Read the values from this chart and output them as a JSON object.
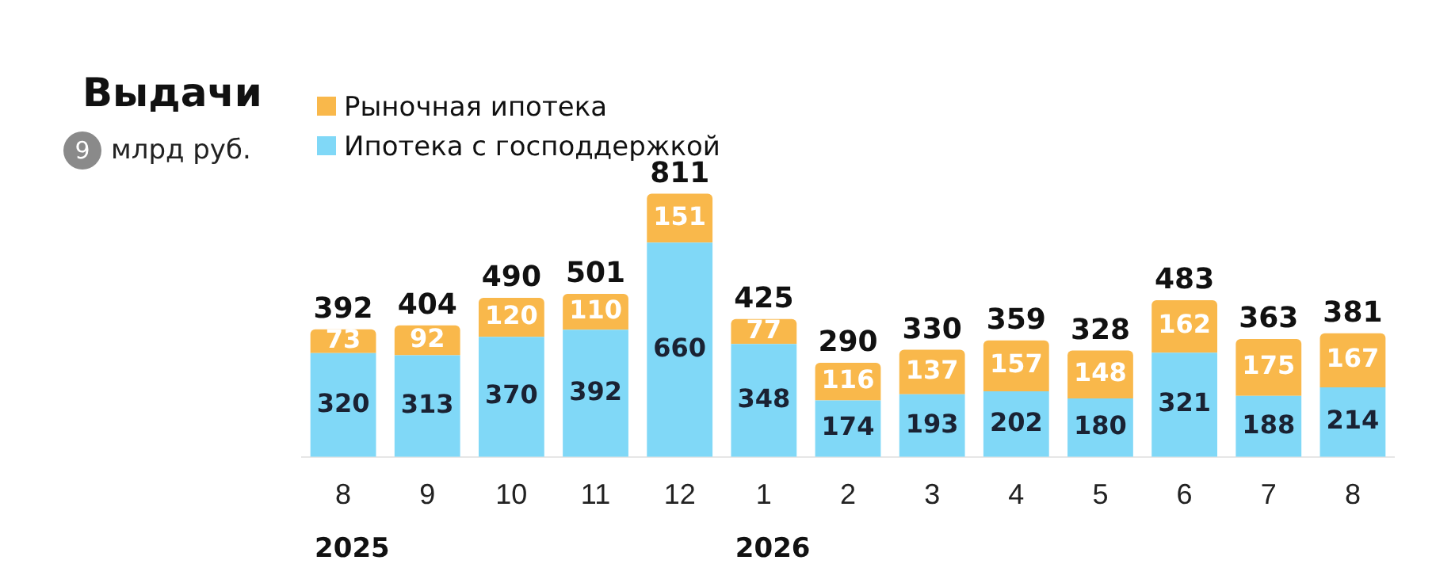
{
  "chart_data": {
    "type": "bar",
    "title": "Выдачи",
    "subtitle": "млрд руб.",
    "categories": [
      "8",
      "9",
      "10",
      "11",
      "12",
      "1",
      "2",
      "3",
      "4",
      "5",
      "6",
      "7",
      "8"
    ],
    "series": [
      {
        "name": "Ипотека с господдержкой",
        "color": "#80d8f7",
        "values": [
          320,
          313,
          370,
          392,
          660,
          348,
          174,
          193,
          202,
          180,
          321,
          188,
          214
        ]
      },
      {
        "name": "Рыночная ипотека",
        "color": "#f9b84b",
        "values": [
          73,
          92,
          120,
          110,
          151,
          77,
          116,
          137,
          157,
          148,
          162,
          175,
          167
        ]
      }
    ],
    "stacked": true,
    "data_labels": true,
    "totals": [
      "392",
      "404",
      "490",
      "501",
      "811",
      "425",
      "290",
      "330",
      "359",
      "328",
      "483",
      "363",
      "381"
    ],
    "legend": "top left",
    "grid": false,
    "annotations": [
      "9",
      "2025",
      "2026"
    ]
  }
}
